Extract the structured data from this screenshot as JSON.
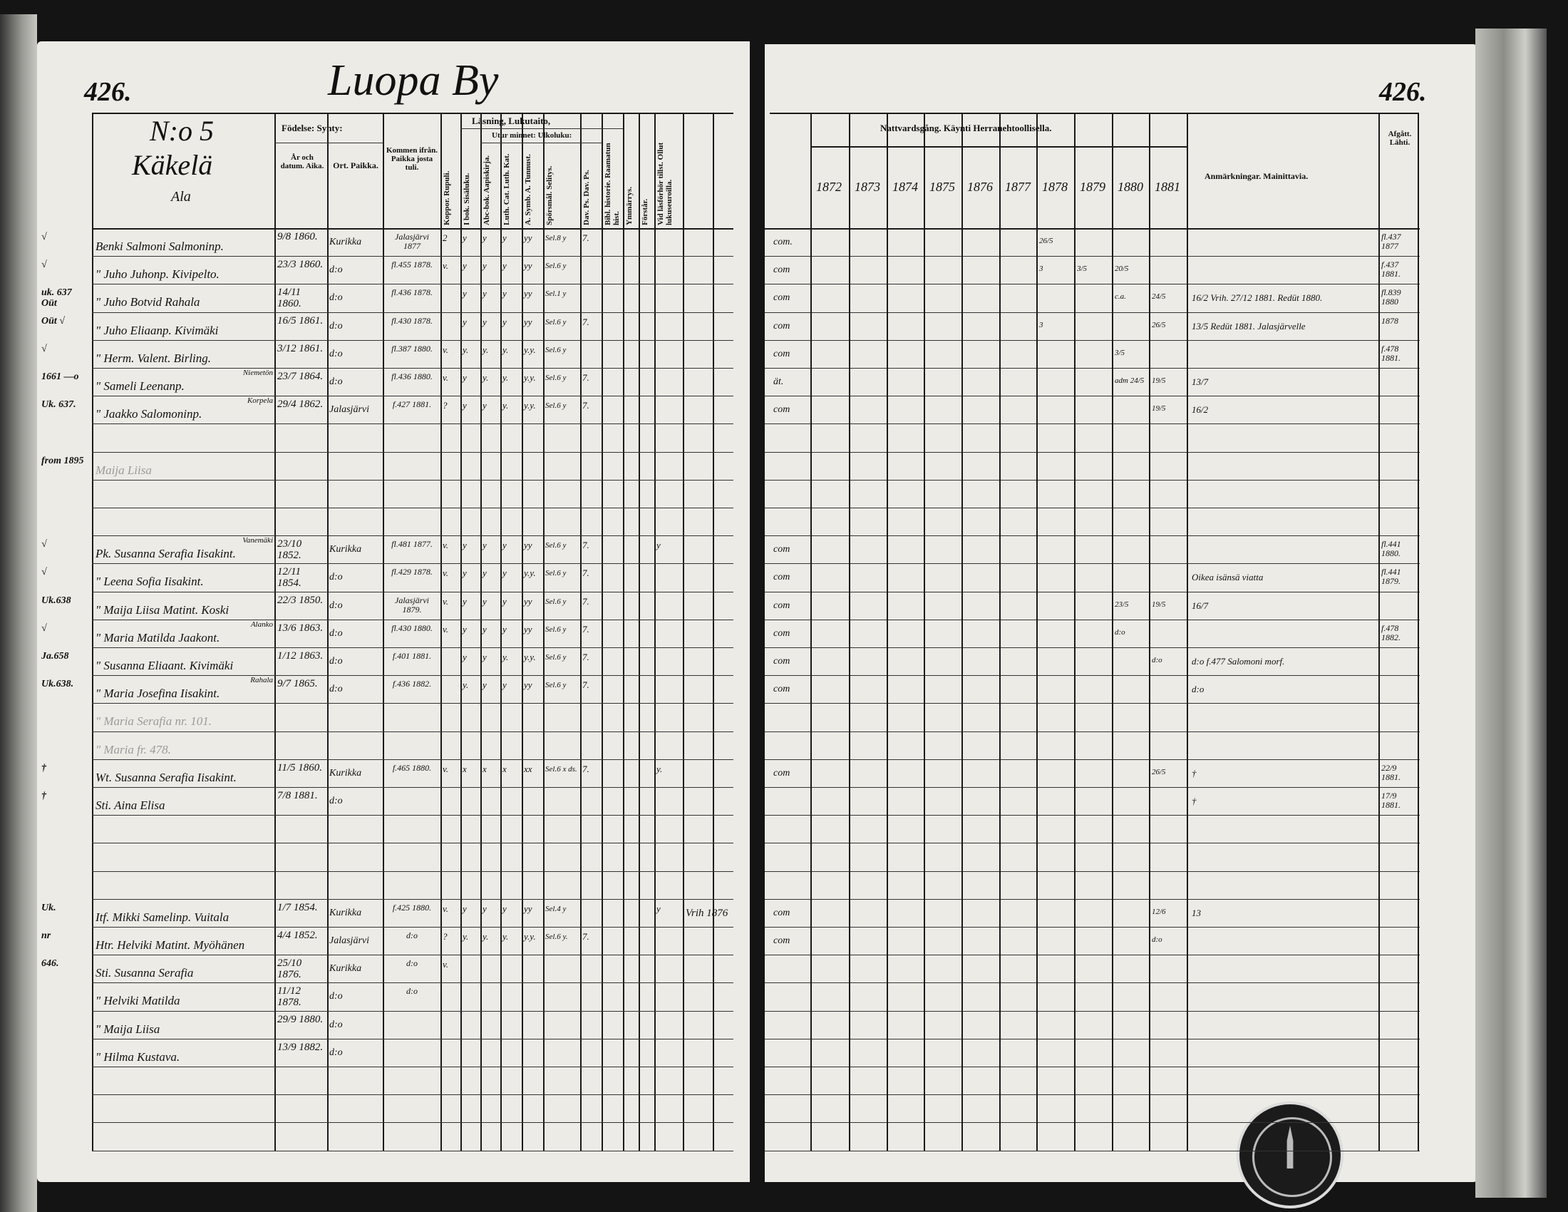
{
  "header": {
    "page_number_left": "426.",
    "page_number_right": "426.",
    "village_title": "Luopa By",
    "household_number": "N:o 5",
    "household_name": "Käkelä",
    "household_sub": "Ala"
  },
  "left_columns": {
    "birth_group": "Födelse: Synty:",
    "birth_year": "År och datum. Aika.",
    "birth_place": "Ort. Paikka.",
    "came_from": "Kommen ifrån. Paikka josta tuli.",
    "smallpox": "Koppor. Rupuli.",
    "reading_group": "Läsning, Lukutaito,",
    "memory_group": "Utur minnet: Ulkoluku:",
    "book": "I bok. Sisäluku.",
    "abc": "Abc-bok. Aapiskirja.",
    "catechism": "Luth. Cat. Luth. Kat.",
    "symbol": "A. Symb. A. Tunnust.",
    "questions": "Spörsmål. Selitys.",
    "psalms": "Dav. Ps. Dav. Ps.",
    "bible_history": "Bibl. historie. Raamatun hist.",
    "understanding": "Ymmärrys.",
    "comprehends": "Förstår.",
    "exam": "Vid läsförhör tillst. Ollut lukuseuroilla."
  },
  "right_columns": {
    "communion": "Nattvardsgång. Käynti Herranehtoollisella.",
    "years": [
      "1872",
      "1873",
      "1874",
      "1875",
      "1876",
      "1877",
      "1878",
      "1879",
      "1880",
      "1881"
    ],
    "remarks": "Anmärkningar. Mainittavia.",
    "departed": "Afgått. Lähti."
  },
  "rows": [
    {
      "row": 0,
      "margin": "√",
      "name": "Benki Salmoni Salmoninp.",
      "birth": "9/8 1860.",
      "place": "Kurikka",
      "came": "Jalasjärvi 1877",
      "reading": [
        "2",
        "y",
        "y",
        "y",
        "yy",
        "Sel.8 y",
        "7.",
        "",
        "",
        "",
        ""
      ],
      "com": "com.",
      "years": {
        "1878": "26/5"
      },
      "remark": "",
      "departed": "fl.437 1877"
    },
    {
      "row": 1,
      "margin": "√",
      "name": "\" Juho Juhonp. Kivipelto.",
      "birth": "23/3 1860.",
      "place": "d:o",
      "came": "fl.455 1878.",
      "reading": [
        "v.",
        "y",
        "y",
        "y",
        "yy",
        "Sel.6 y",
        "",
        "",
        "",
        "",
        ""
      ],
      "com": "com",
      "years": {
        "1878": "3",
        "1879": "3/5",
        "1880": "20/5"
      },
      "remark": "",
      "departed": "f.437 1881."
    },
    {
      "row": 2,
      "margin": "uk. 637 Oüt",
      "name": "\" Juho Botvid Rahala",
      "birth": "14/11 1860.",
      "place": "d:o",
      "came": "fl.436 1878.",
      "reading": [
        "",
        "y",
        "y",
        "y",
        "yy",
        "Sel.1 y",
        "",
        "",
        "",
        "",
        ""
      ],
      "com": "com",
      "years": {
        "1880": "c.a.",
        "1881": "24/5"
      },
      "remark": "16/2  Vrih. 27/12 1881.  Redüt 1880.",
      "departed": "fl.839 1880"
    },
    {
      "row": 3,
      "margin": "Oüt √",
      "name": "\" Juho Eliaanp. Kivimäki",
      "birth": "16/5 1861.",
      "place": "d:o",
      "came": "fl.430 1878.",
      "reading": [
        "",
        "y",
        "y",
        "y",
        "yy",
        "Sel.6 y",
        "7.",
        "",
        "",
        "",
        ""
      ],
      "com": "com",
      "years": {
        "1878": "3",
        "1881": "26/5"
      },
      "remark": "13/5  Redüt 1881.  Jalasjärvelle",
      "departed": "1878"
    },
    {
      "row": 4,
      "margin": "√",
      "name": "\" Herm. Valent. Birling.",
      "birth": "3/12 1861.",
      "place": "d:o",
      "came": "fl.387 1880.",
      "reading": [
        "v.",
        "y.",
        "y.",
        "y.",
        "y.y.",
        "Sel.6 y",
        "",
        "",
        "",
        "",
        ""
      ],
      "com": "com",
      "years": {
        "1880": "3/5"
      },
      "remark": "",
      "departed": "f.478 1881."
    },
    {
      "row": 5,
      "margin": "1661 —o",
      "note": "Niemetön",
      "name": "\" Sameli Leenanp.",
      "birth": "23/7 1864.",
      "place": "d:o",
      "came": "fl.436 1880.",
      "reading": [
        "v.",
        "y",
        "y.",
        "y.",
        "y.y.",
        "Sel.6 y",
        "7.",
        "",
        "",
        "",
        ""
      ],
      "com": "ät.",
      "years": {
        "1880": "adm 24/5",
        "1881": "19/5"
      },
      "remark": "13/7",
      "departed": ""
    },
    {
      "row": 6,
      "margin": "Uk. 637.",
      "note": "Korpela",
      "name": "\" Jaakko Salomoninp.",
      "birth": "29/4 1862.",
      "place": "Jalasjärvi",
      "came": "f.427 1881.",
      "reading": [
        "?",
        "y",
        "y",
        "y.",
        "y.y.",
        "Sel.6 y",
        "7.",
        "",
        "",
        "",
        ""
      ],
      "com": "com",
      "years": {
        "1881": "19/5"
      },
      "remark": "16/2",
      "departed": ""
    },
    {
      "row": 8,
      "margin": "from 1895",
      "name": "Maija Liisa",
      "faded": true,
      "birth": "",
      "place": "",
      "came": "",
      "reading": [],
      "com": "",
      "years": {},
      "remark": "",
      "departed": ""
    },
    {
      "row": 11,
      "margin": "√",
      "note": "Vanemäki",
      "name": "Pk. Susanna Serafia Iisakint.",
      "birth": "23/10 1852.",
      "place": "Kurikka",
      "came": "fl.481 1877.",
      "reading": [
        "v.",
        "y",
        "y",
        "y",
        "yy",
        "Sel.6 y",
        "7.",
        "",
        "",
        "",
        "y"
      ],
      "com": "com",
      "years": {},
      "remark": "",
      "departed": "fl.441 1880."
    },
    {
      "row": 12,
      "margin": "√",
      "name": "\" Leena Sofia Iisakint.",
      "birth": "12/11 1854.",
      "place": "d:o",
      "came": "fl.429 1878.",
      "reading": [
        "v.",
        "y",
        "y",
        "y",
        "y.y.",
        "Sel.6 y",
        "7.",
        "",
        "",
        "",
        ""
      ],
      "com": "com",
      "years": {},
      "remark": "Oikea isänsä viatta",
      "departed": "fl.441 1879."
    },
    {
      "row": 13,
      "margin": "Uk.638",
      "name": "\" Maija Liisa Matint. Koski",
      "birth": "22/3 1850.",
      "place": "d:o",
      "came": "Jalasjärvi 1879.",
      "reading": [
        "v.",
        "y",
        "y",
        "y",
        "yy",
        "Sel.6 y",
        "7.",
        "",
        "",
        "",
        ""
      ],
      "com": "com",
      "years": {
        "1880": "23/5",
        "1881": "19/5"
      },
      "remark": "16/7",
      "departed": ""
    },
    {
      "row": 14,
      "margin": "√",
      "note": "Alanko",
      "name": "\" Maria Matilda Jaakont.",
      "birth": "13/6 1863.",
      "place": "d:o",
      "came": "fl.430 1880.",
      "reading": [
        "v.",
        "y",
        "y",
        "y",
        "yy",
        "Sel.6 y",
        "7.",
        "",
        "",
        "",
        ""
      ],
      "com": "com",
      "years": {
        "1880": "d:o"
      },
      "remark": "",
      "departed": "f.478 1882."
    },
    {
      "row": 15,
      "margin": "Ja.658",
      "name": "\" Susanna Eliaant. Kivimäki",
      "birth": "1/12 1863.",
      "place": "d:o",
      "came": "f.401 1881.",
      "reading": [
        "",
        "y",
        "y",
        "y.",
        "y.y.",
        "Sel.6 y",
        "7.",
        "",
        "",
        "",
        ""
      ],
      "com": "com",
      "years": {
        "1881": "d:o"
      },
      "remark": "d:o   f.477 Salomoni morf.",
      "departed": ""
    },
    {
      "row": 16,
      "margin": "Uk.638.",
      "note": "Rahala",
      "name": "\" Maria Josefina Iisakint.",
      "birth": "9/7 1865.",
      "place": "d:o",
      "came": "f.436 1882.",
      "reading": [
        "",
        "y.",
        "y",
        "y",
        "yy",
        "Sel.6 y",
        "7.",
        "",
        "",
        "",
        ""
      ],
      "com": "com",
      "years": {},
      "remark": "d:o",
      "departed": ""
    },
    {
      "row": 17,
      "name": "\" Maria Serafia nr. 101.",
      "faded": true,
      "margin": "",
      "birth": "",
      "place": "",
      "came": "",
      "reading": [],
      "com": "",
      "years": {},
      "remark": "",
      "departed": ""
    },
    {
      "row": 18,
      "name": "\" Maria fr. 478.",
      "faded": true,
      "margin": "",
      "birth": "",
      "place": "",
      "came": "",
      "reading": [],
      "com": "",
      "years": {},
      "remark": "",
      "departed": ""
    },
    {
      "row": 19,
      "margin": "†",
      "name": "Wt. Susanna Serafia Iisakint.",
      "birth": "11/5 1860.",
      "place": "Kurikka",
      "came": "f.465 1880.",
      "reading": [
        "v.",
        "x",
        "x",
        "x",
        "xx",
        "Sel.6 x ds.",
        "7.",
        "",
        "",
        "",
        "y."
      ],
      "com": "com",
      "years": {
        "1881": "26/5"
      },
      "remark": "†",
      "departed": "22/9 1881."
    },
    {
      "row": 20,
      "margin": "†",
      "name": "Sti. Aina Elisa",
      "birth": "7/8 1881.",
      "place": "d:o",
      "came": "",
      "reading": [],
      "com": "",
      "years": {},
      "remark": "†",
      "departed": "17/9 1881."
    },
    {
      "row": 24,
      "margin": "Uk.",
      "name": "Itf. Mikki Samelinp. Vuitala",
      "birth": "1/7 1854.",
      "place": "Kurikka",
      "came": "f.425 1880.",
      "reading": [
        "v.",
        "y",
        "y",
        "y",
        "yy",
        "Sel.4 y",
        "",
        "",
        "",
        "",
        "y"
      ],
      "com": "com",
      "years": {
        "1881": "12/6"
      },
      "remark": "13",
      "departed": ""
    },
    {
      "row": 25,
      "margin": "nr",
      "name": "Htr. Helviki Matint. Myöhänen",
      "birth": "4/4 1852.",
      "place": "Jalasjärvi",
      "came": "d:o",
      "reading": [
        "?",
        "y.",
        "y.",
        "y.",
        "y.y.",
        "Sel.6 y.",
        "7.",
        "",
        "",
        "",
        ""
      ],
      "com": "com",
      "years": {
        "1881": "d:o"
      },
      "remark": "",
      "departed": ""
    },
    {
      "row": 26,
      "margin": "646.",
      "name": "Sti. Susanna Serafia",
      "birth": "25/10 1876.",
      "place": "Kurikka",
      "came": "d:o",
      "reading": [
        "v."
      ],
      "com": "",
      "years": {},
      "remark": "",
      "departed": ""
    },
    {
      "row": 27,
      "margin": "",
      "name": "\" Helviki Matilda",
      "birth": "11/12 1878.",
      "place": "d:o",
      "came": "d:o",
      "reading": [],
      "com": "",
      "years": {},
      "remark": "",
      "departed": ""
    },
    {
      "row": 28,
      "margin": "",
      "name": "\" Maija Liisa",
      "birth": "29/9 1880.",
      "place": "d:o",
      "came": "",
      "reading": [],
      "com": "",
      "years": {},
      "remark": "",
      "departed": ""
    },
    {
      "row": 29,
      "margin": "",
      "name": "\" Hilma Kustava.",
      "birth": "13/9 1882.",
      "place": "d:o",
      "came": "",
      "reading": [],
      "com": "",
      "years": {},
      "remark": "",
      "departed": ""
    }
  ],
  "side_note": "Vrih 1876",
  "colors": {
    "paper": "#ecebe6",
    "ink": "#111111",
    "background": "#141414"
  }
}
